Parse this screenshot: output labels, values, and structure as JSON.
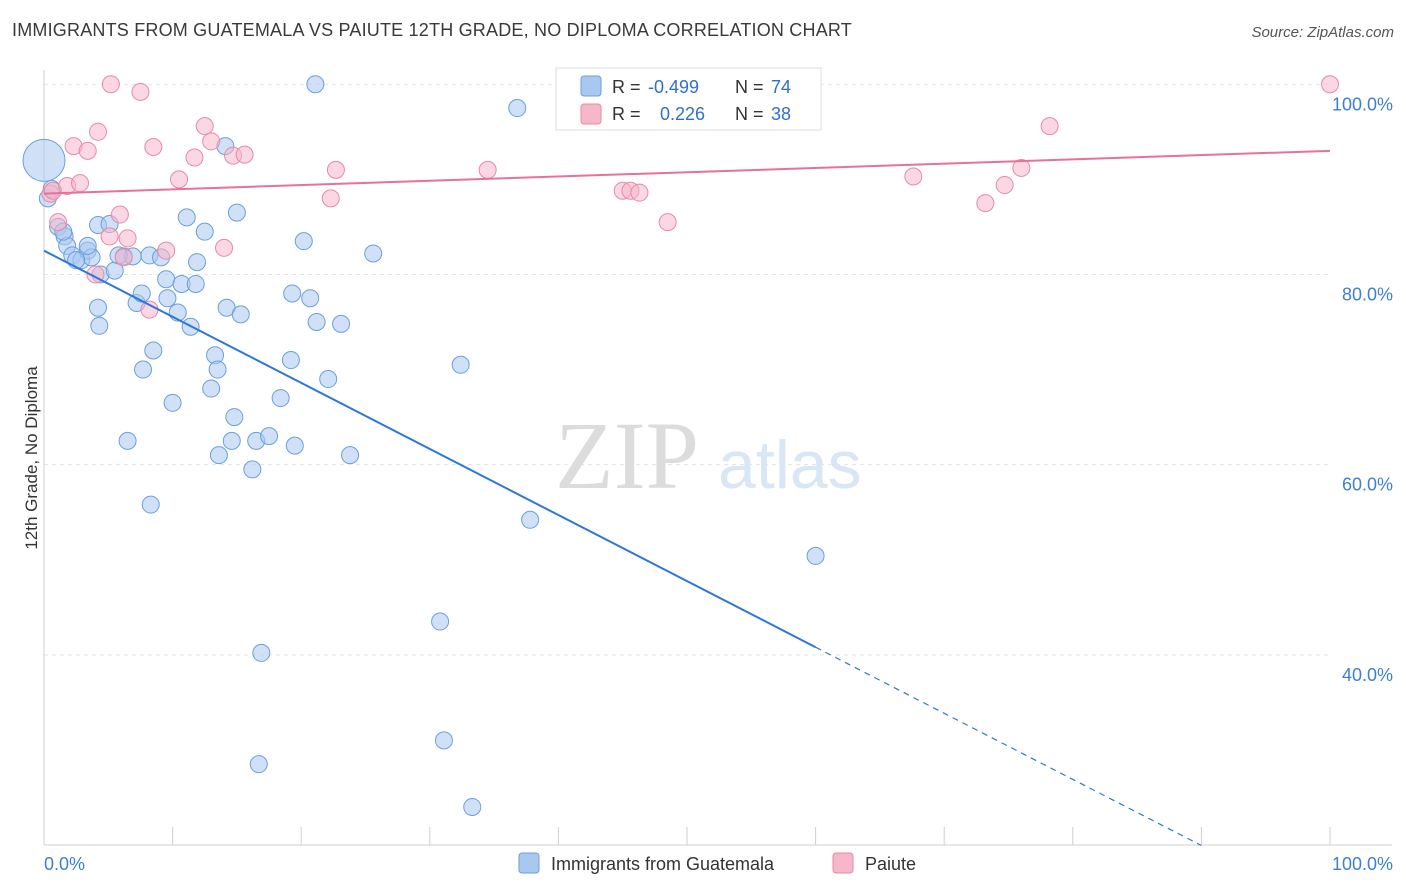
{
  "header": {
    "title": "IMMIGRANTS FROM GUATEMALA VS PAIUTE 12TH GRADE, NO DIPLOMA CORRELATION CHART",
    "source": "Source: ZipAtlas.com"
  },
  "watermark": {
    "part1": "ZIP",
    "part2": "atlas"
  },
  "legend_top": {
    "rows": [
      {
        "r_label": "R =",
        "r_value": "-0.499",
        "n_label": "N =",
        "n_value": "74",
        "color": "#a9c8f0"
      },
      {
        "r_label": "R =",
        "r_value": "0.226",
        "n_label": "N =",
        "n_value": "38",
        "color": "#f6b7ca"
      }
    ]
  },
  "legend_bottom": {
    "items": [
      {
        "label": "Immigrants from Guatemala",
        "color": "#a9c8f0"
      },
      {
        "label": "Paiute",
        "color": "#f6b7ca"
      }
    ]
  },
  "colors": {
    "blue_fill": "#a9c8f0",
    "blue_stroke": "#6a9fdc",
    "blue_line": "#2f77d6",
    "pink_fill": "#f6b7ca",
    "pink_stroke": "#e88aa8",
    "pink_line": "#e8709a",
    "grid": "#e3e3e3",
    "axis_text": "#3f7fd0"
  },
  "chart_data": {
    "type": "scatter",
    "title": "IMMIGRANTS FROM GUATEMALA VS PAIUTE 12TH GRADE, NO DIPLOMA CORRELATION CHART",
    "xlabel": "",
    "ylabel": "12th Grade, No Diploma",
    "xlim": [
      0,
      100
    ],
    "ylim": [
      20,
      101.5
    ],
    "x_tick_labels": [
      "0.0%",
      "100.0%"
    ],
    "y_ticks": [
      40,
      60,
      80,
      100
    ],
    "y_tick_labels": [
      "40.0%",
      "60.0%",
      "80.0%",
      "100.0%"
    ],
    "grid": true,
    "legend_position": "top-center",
    "series": [
      {
        "name": "Immigrants from Guatemala",
        "r": -0.499,
        "n": 74,
        "trend": {
          "x0": 0,
          "y0": 82.5,
          "x1": 60,
          "y1": 40.8,
          "dash_to_x": 90
        },
        "points": [
          [
            0,
            92,
            3
          ],
          [
            0.3,
            88,
            1.6
          ],
          [
            0.6,
            89,
            1.6
          ],
          [
            1.1,
            85,
            1.6
          ],
          [
            1.6,
            84,
            1.6
          ],
          [
            1.8,
            83,
            1.6
          ],
          [
            2.2,
            82,
            1.6
          ],
          [
            2.9,
            81.5,
            1.6
          ],
          [
            3.4,
            82.5,
            1.6
          ],
          [
            3.7,
            81.8,
            1.6
          ],
          [
            3.4,
            83,
            1.6
          ],
          [
            4.2,
            85.2,
            1.6
          ],
          [
            4.4,
            80,
            1.6
          ],
          [
            5.1,
            85.3,
            1.6
          ],
          [
            5.5,
            80.4,
            1.6
          ],
          [
            6.2,
            81.9,
            1.6
          ],
          [
            6.9,
            81.9,
            1.6
          ],
          [
            7.2,
            77,
            1.6
          ],
          [
            7.6,
            78,
            1.6
          ],
          [
            8.2,
            82,
            1.6
          ],
          [
            9.1,
            81.8,
            1.6
          ],
          [
            9.5,
            79.5,
            1.6
          ],
          [
            9.6,
            77.5,
            1.6
          ],
          [
            10.4,
            76,
            1.6
          ],
          [
            10.7,
            79,
            1.6
          ],
          [
            11.1,
            86,
            1.6
          ],
          [
            11.4,
            74.5,
            1.6
          ],
          [
            11.8,
            79,
            1.6
          ],
          [
            11.9,
            81.3,
            1.6
          ],
          [
            12.5,
            84.5,
            1.6
          ],
          [
            13.0,
            68,
            1.6
          ],
          [
            13.3,
            71.5,
            1.6
          ],
          [
            13.5,
            70,
            1.6
          ],
          [
            13.6,
            61,
            1.6
          ],
          [
            14.1,
            93.5,
            1.6
          ],
          [
            14.2,
            76.5,
            1.6
          ],
          [
            14.6,
            62.5,
            1.6
          ],
          [
            14.8,
            65,
            1.6
          ],
          [
            15.0,
            86.5,
            1.6
          ],
          [
            15.3,
            75.8,
            1.6
          ],
          [
            16.2,
            59.5,
            1.6
          ],
          [
            16.5,
            62.5,
            1.6
          ],
          [
            16.9,
            40.2,
            1.6
          ],
          [
            16.7,
            28.5,
            1.6
          ],
          [
            17.5,
            63,
            1.6
          ],
          [
            18.4,
            67,
            1.6
          ],
          [
            19.2,
            71,
            1.6
          ],
          [
            19.3,
            78,
            1.6
          ],
          [
            19.5,
            62,
            1.6
          ],
          [
            20.2,
            83.5,
            1.6
          ],
          [
            20.7,
            77.5,
            1.6
          ],
          [
            21.2,
            75,
            1.6
          ],
          [
            21.1,
            100,
            1.6
          ],
          [
            22.1,
            69,
            1.6
          ],
          [
            23.1,
            74.8,
            1.6
          ],
          [
            23.8,
            61,
            1.6
          ],
          [
            25.6,
            82.2,
            1.6
          ],
          [
            4.2,
            76.5,
            1.6
          ],
          [
            6.5,
            62.5,
            1.6
          ],
          [
            7.7,
            70,
            1.6
          ],
          [
            8.5,
            72,
            1.6
          ],
          [
            10.0,
            66.5,
            1.6
          ],
          [
            8.3,
            55.8,
            1.6
          ],
          [
            4.3,
            74.6,
            1.6
          ],
          [
            30.8,
            43.5,
            1.6
          ],
          [
            31.1,
            31,
            1.6
          ],
          [
            32.4,
            70.5,
            1.6
          ],
          [
            33.3,
            24,
            1.6
          ],
          [
            36.8,
            97.5,
            1.6
          ],
          [
            37.8,
            54.2,
            1.6
          ],
          [
            60.0,
            50.4,
            1.6
          ],
          [
            1.5,
            84.5,
            1.6
          ],
          [
            2.5,
            81.5,
            1.6
          ],
          [
            5.8,
            82,
            1.6
          ]
        ]
      },
      {
        "name": "Paiute",
        "r": 0.226,
        "n": 38,
        "trend": {
          "x0": 0,
          "y0": 88.5,
          "x1": 100,
          "y1": 93
        },
        "points": [
          [
            0.5,
            88.5,
            1.6
          ],
          [
            0.7,
            88.8,
            1.6
          ],
          [
            1.1,
            85.5,
            1.6
          ],
          [
            1.8,
            89.3,
            1.6
          ],
          [
            2.3,
            93.5,
            1.6
          ],
          [
            2.8,
            89.6,
            1.6
          ],
          [
            3.4,
            93,
            1.6
          ],
          [
            4.0,
            80,
            1.6
          ],
          [
            4.2,
            95,
            1.6
          ],
          [
            5.1,
            84,
            1.6
          ],
          [
            5.2,
            100,
            1.6
          ],
          [
            5.9,
            86.3,
            1.6
          ],
          [
            6.5,
            83.8,
            1.6
          ],
          [
            7.5,
            99.2,
            1.6
          ],
          [
            8.2,
            76.3,
            1.6
          ],
          [
            8.5,
            93.4,
            1.6
          ],
          [
            9.5,
            82.5,
            1.6
          ],
          [
            10.5,
            90,
            1.6
          ],
          [
            11.7,
            92.3,
            1.6
          ],
          [
            12.5,
            95.6,
            1.6
          ],
          [
            13.0,
            94.0,
            1.6
          ],
          [
            14.0,
            82.8,
            1.6
          ],
          [
            14.7,
            92.5,
            1.6
          ],
          [
            15.6,
            92.6,
            1.6
          ],
          [
            6.2,
            81.8,
            1.6
          ],
          [
            22.3,
            88,
            1.6
          ],
          [
            22.7,
            91,
            1.6
          ],
          [
            34.5,
            91,
            1.6
          ],
          [
            45.0,
            88.8,
            1.6
          ],
          [
            45.6,
            88.8,
            1.6
          ],
          [
            46.3,
            88.6,
            1.6
          ],
          [
            48.5,
            85.5,
            1.6
          ],
          [
            67.6,
            90.3,
            1.6
          ],
          [
            73.2,
            87.5,
            1.6
          ],
          [
            74.7,
            89.4,
            1.6
          ],
          [
            76.0,
            91.2,
            1.6
          ],
          [
            78.2,
            95.6,
            1.6
          ],
          [
            100.0,
            100,
            1.6
          ]
        ]
      }
    ]
  }
}
